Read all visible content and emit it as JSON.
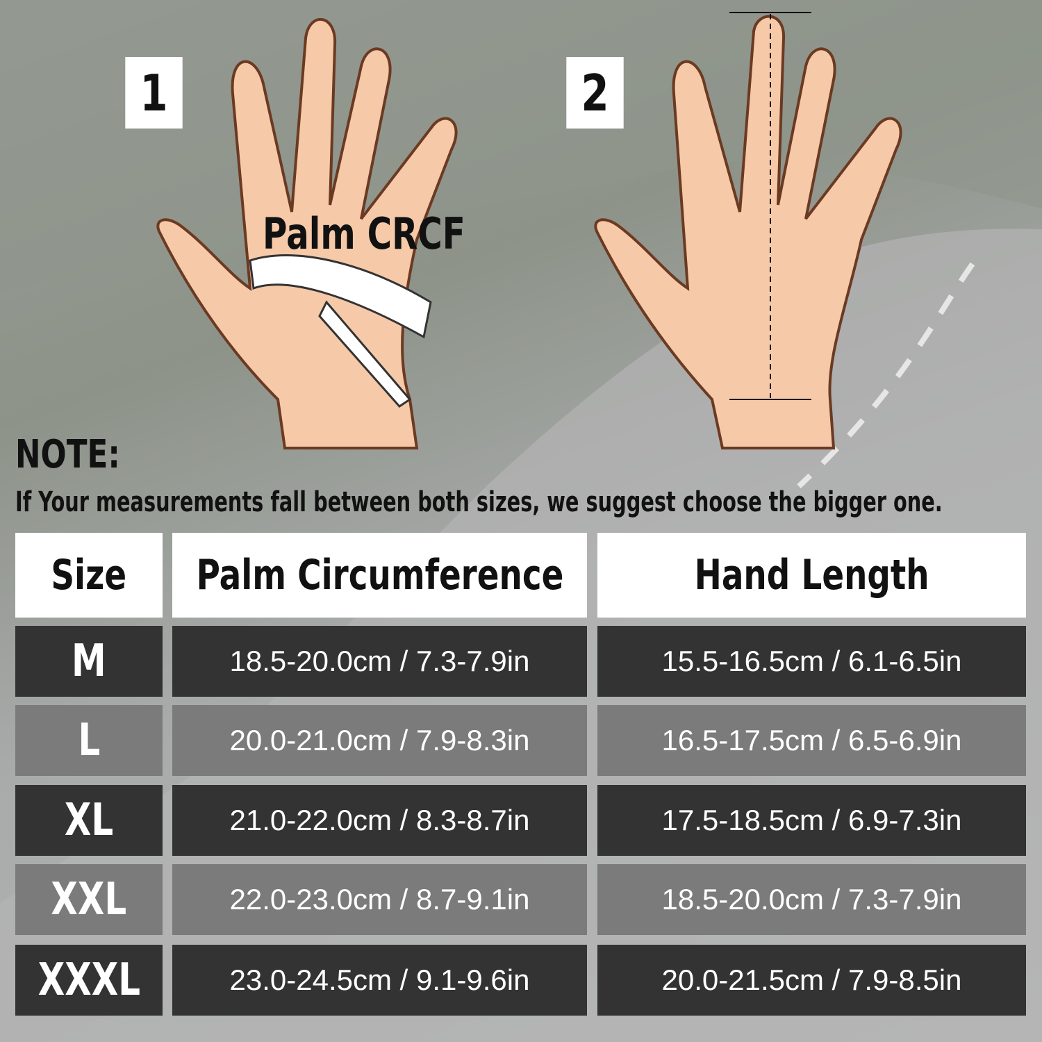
{
  "steps": [
    {
      "number": "1",
      "label": "Palm CRCF"
    },
    {
      "number": "2"
    }
  ],
  "note": {
    "title": "NOTE:",
    "text": "If Your measurements fall between both sizes, we suggest choose the bigger one."
  },
  "table": {
    "headers": [
      "Size",
      "Palm Circumference",
      "Hand Length"
    ],
    "rows": [
      {
        "size": "M",
        "palm": "18.5-20.0cm / 7.3-7.9in",
        "length": "15.5-16.5cm / 6.1-6.5in"
      },
      {
        "size": "L",
        "palm": "20.0-21.0cm / 7.9-8.3in",
        "length": "16.5-17.5cm / 6.5-6.9in"
      },
      {
        "size": "XL",
        "palm": "21.0-22.0cm / 8.3-8.7in",
        "length": "17.5-18.5cm / 6.9-7.3in"
      },
      {
        "size": "XXL",
        "palm": "22.0-23.0cm / 8.7-9.1in",
        "length": "18.5-20.0cm / 7.3-7.9in"
      },
      {
        "size": "XXXL",
        "palm": "23.0-24.5cm / 9.1-9.6in",
        "length": "20.0-21.5cm / 7.9-8.5in"
      }
    ]
  },
  "colors": {
    "row_dark": "#333333",
    "row_light": "#7b7b7b",
    "header": "#ffffff",
    "skin": "#f6c9a8"
  }
}
